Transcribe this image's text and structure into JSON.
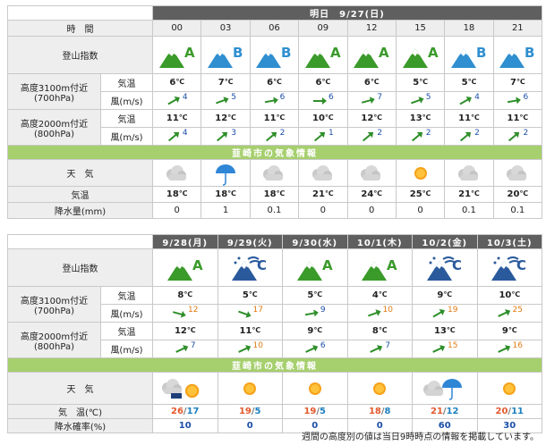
{
  "daily": {
    "title": "明日　9/27(日)",
    "time_label": "時　間",
    "hours": [
      "00",
      "03",
      "06",
      "09",
      "12",
      "15",
      "18",
      "21"
    ],
    "index_label": "登山指数",
    "indices": [
      "A",
      "B",
      "B",
      "A",
      "A",
      "A",
      "B",
      "B"
    ],
    "h3100_label": "高度3100m付近",
    "h3100_sub": "(700hPa)",
    "h2000_label": "高度2000m付近",
    "h2000_sub": "(800hPa)",
    "temp_label": "気温",
    "wind_label": "風(m/s)",
    "deg_unit": "℃",
    "h3100_temp": [
      "6",
      "7",
      "6",
      "6",
      "6",
      "5",
      "5",
      "7"
    ],
    "h3100_wind": [
      "4",
      "5",
      "6",
      "6",
      "7",
      "5",
      "4",
      "6"
    ],
    "h2000_temp": [
      "11",
      "12",
      "11",
      "10",
      "12",
      "13",
      "11",
      "11"
    ],
    "h2000_wind": [
      "4",
      "3",
      "2",
      "1",
      "2",
      "2",
      "2",
      "2"
    ],
    "city_band": "韮崎市の気象情報",
    "weather_label": "天　気",
    "weather_icons": [
      "cloud",
      "umbrella",
      "cloud",
      "cloud",
      "cloud",
      "sun",
      "cloud",
      "cloud"
    ],
    "temp_row_label": "気温",
    "city_temp": [
      "18",
      "18",
      "18",
      "21",
      "24",
      "25",
      "21",
      "20"
    ],
    "precip_label": "降水量(mm)",
    "precip": [
      "0",
      "1",
      "0.1",
      "0",
      "0",
      "0",
      "0.1",
      "0.1"
    ]
  },
  "weekly": {
    "dates": [
      "9/28(月)",
      "9/29(火)",
      "9/30(水)",
      "10/1(木)",
      "10/2(金)",
      "10/3(土)"
    ],
    "index_label": "登山指数",
    "indices": [
      "A",
      "C",
      "A",
      "A",
      "C",
      "C"
    ],
    "index_kinds": [
      "sunny",
      "snowy",
      "sunny",
      "sunny",
      "snowy",
      "snowy"
    ],
    "h3100_label": "高度3100m付近",
    "h3100_sub": "(700hPa)",
    "h2000_label": "高度2000m付近",
    "h2000_sub": "(800hPa)",
    "temp_label": "気温",
    "wind_label": "風(m/s)",
    "deg_unit": "℃",
    "h3100_temp": [
      "8",
      "5",
      "5",
      "4",
      "9",
      "10"
    ],
    "h3100_wind": [
      "12",
      "17",
      "9",
      "10",
      "19",
      "25"
    ],
    "h3100_wind_color": [
      "orange",
      "orange",
      "blue",
      "orange",
      "orange",
      "orange"
    ],
    "h2000_temp": [
      "12",
      "11",
      "9",
      "8",
      "13",
      "9"
    ],
    "h2000_wind": [
      "7",
      "10",
      "6",
      "7",
      "15",
      "16"
    ],
    "h2000_wind_color": [
      "blue",
      "orange",
      "blue",
      "blue",
      "orange",
      "orange"
    ],
    "city_band": "韮崎市の気象情報",
    "weather_label": "天　気",
    "weather_icons": [
      "cloud-sun",
      "sun",
      "sun",
      "sun",
      "cloud-umbrella",
      "sun"
    ],
    "temp_row_label": "気　温(℃)",
    "hi": [
      "26",
      "19",
      "19",
      "18",
      "21",
      "20"
    ],
    "lo": [
      "17",
      "5",
      "5",
      "8",
      "12",
      "11"
    ],
    "pop_label": "降水確率(%)",
    "pop": [
      "10",
      "0",
      "0",
      "0",
      "60",
      "30"
    ]
  },
  "footnote": "週間の高度別の値は当日9時時点の情報を掲載しています。",
  "colors": {
    "header_bg": "#5f5f5f",
    "band_bg": "#a6cf6e",
    "label_bg": "#eeeeee",
    "grade_a": "#3a9a2a",
    "grade_b": "#2f8fd0",
    "grade_c": "#2a5a9c"
  }
}
